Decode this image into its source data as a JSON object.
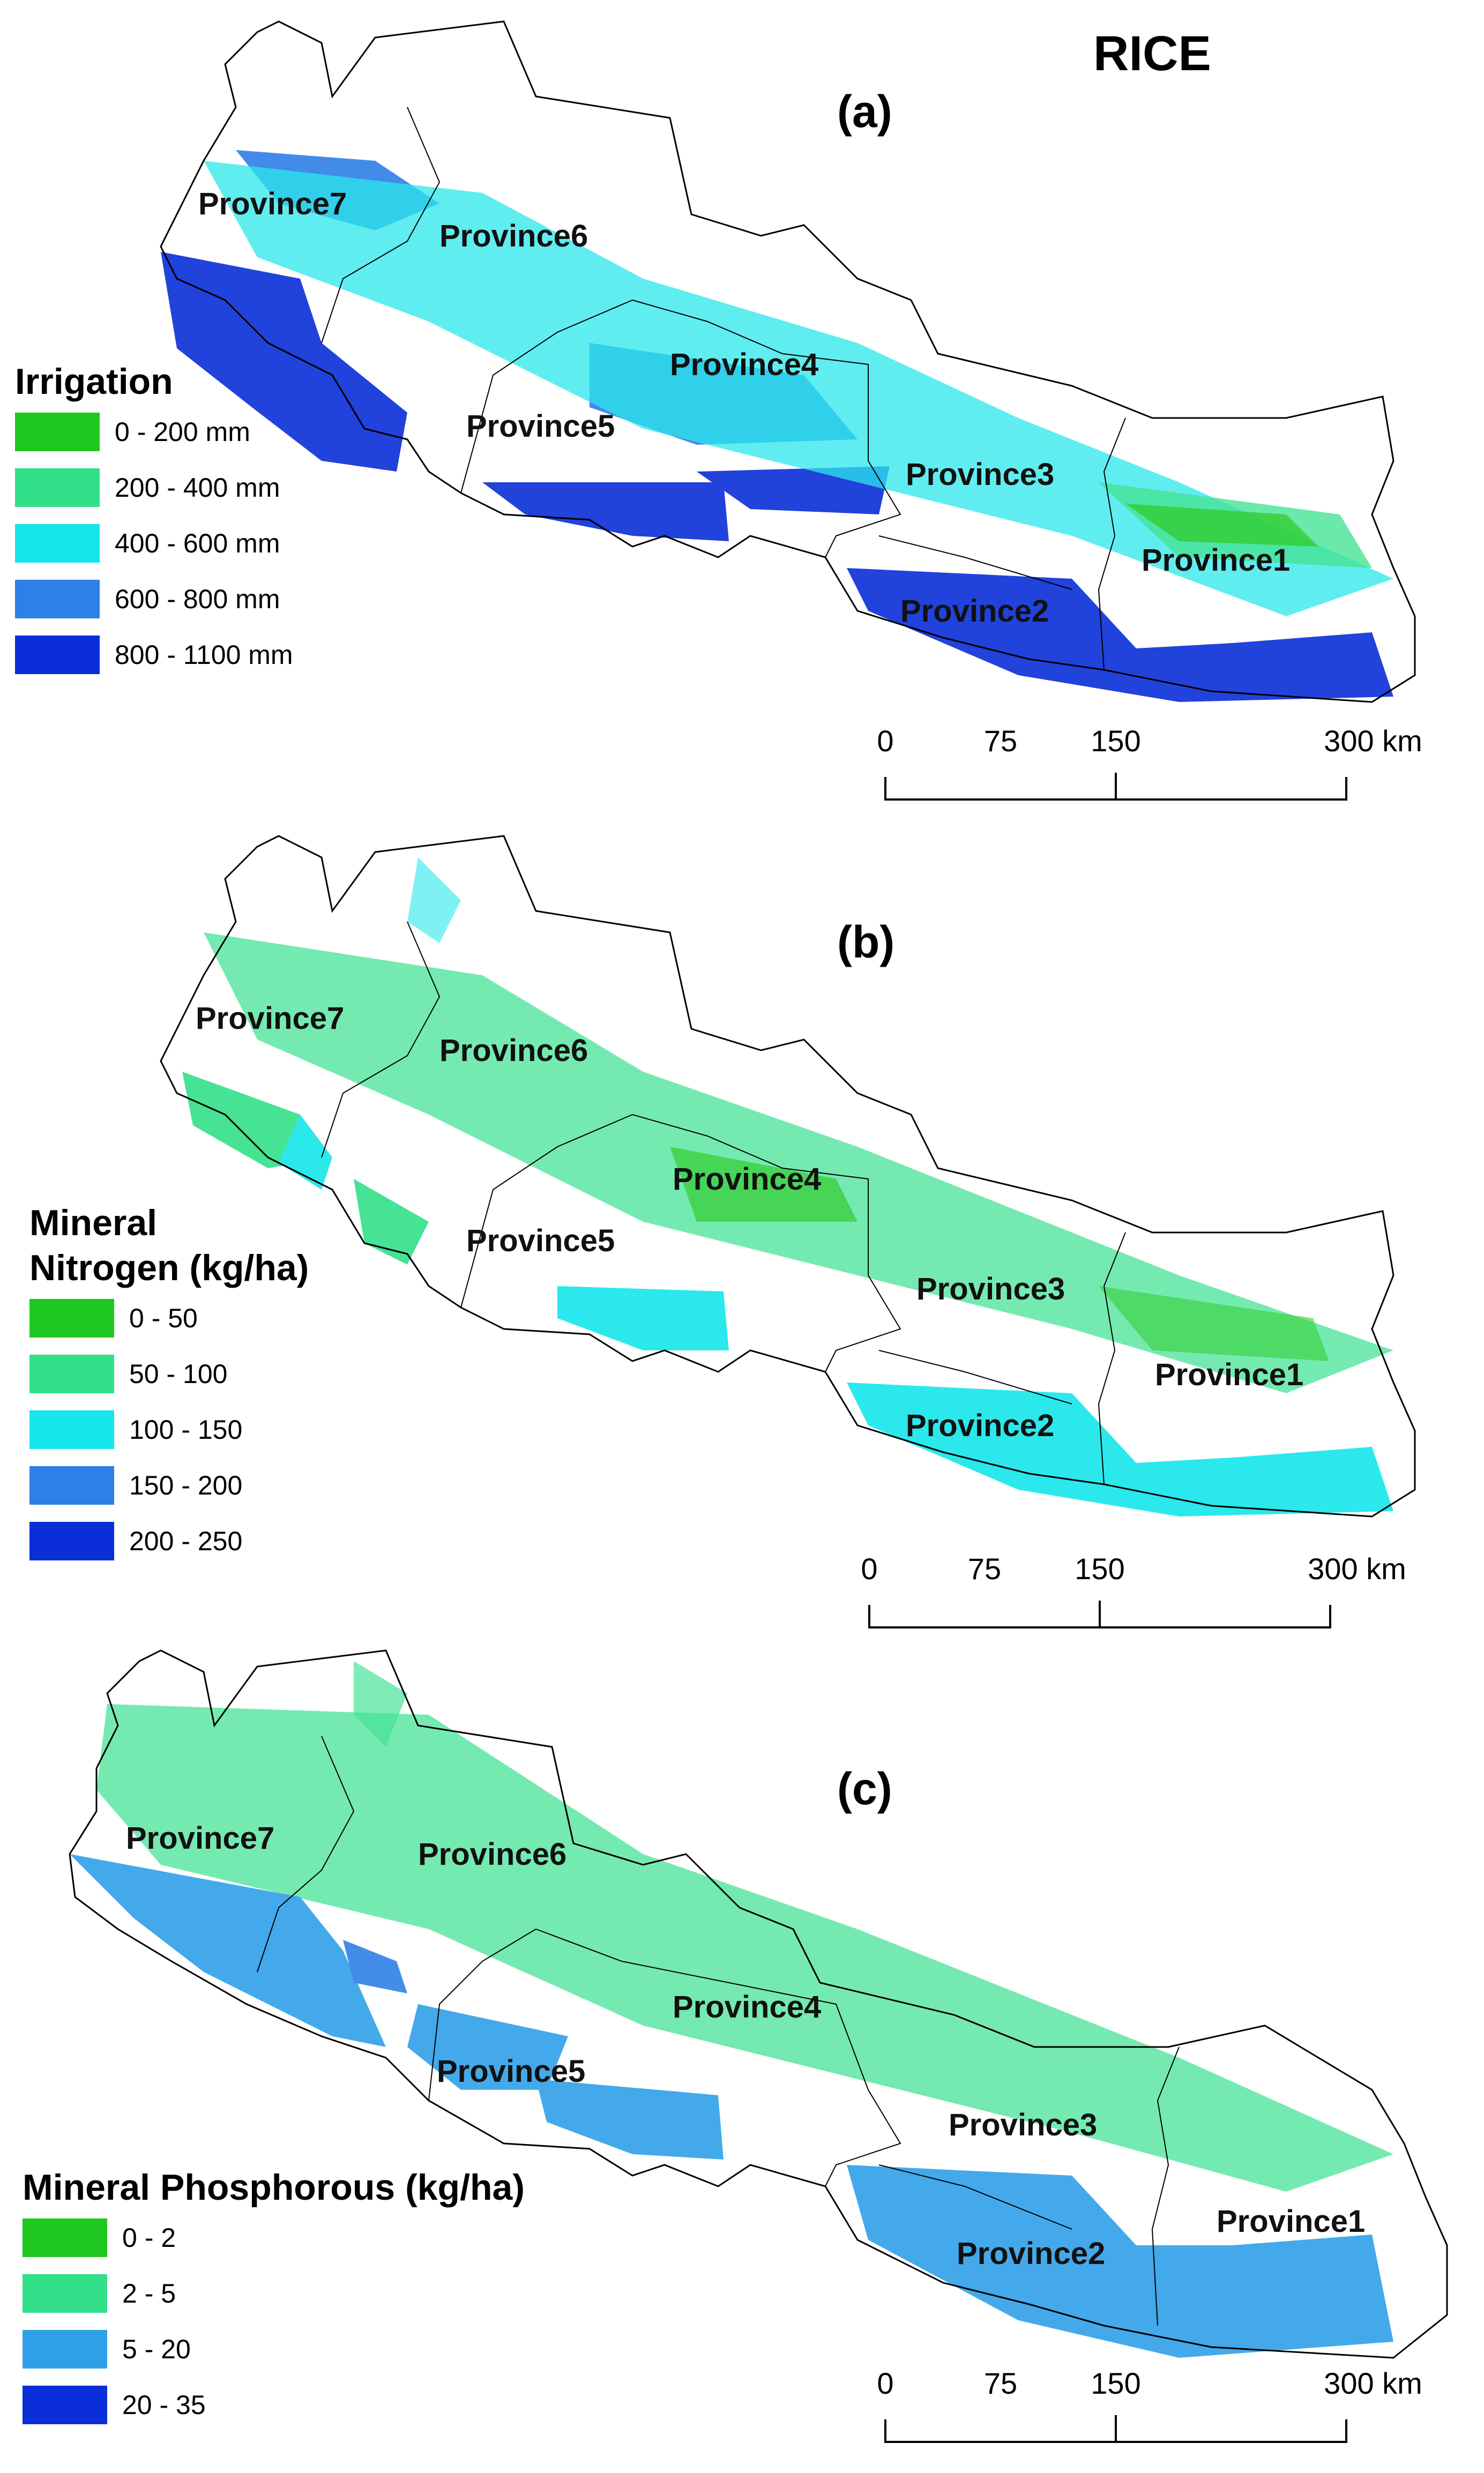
{
  "figure_title": "RICE",
  "colors": {
    "green": "#1ec81e",
    "light_green": "#32e08a",
    "cyan": "#14e6ea",
    "mid_blue": "#2e7fe6",
    "dark_blue": "#0a2ed8",
    "sky_blue": "#2fa0e8",
    "boundary": "#000000"
  },
  "provinces": [
    "Province7",
    "Province6",
    "Province4",
    "Province5",
    "Province3",
    "Province1",
    "Province2"
  ],
  "scale_bar": {
    "ticks": [
      "0",
      "75",
      "150",
      "300 km"
    ]
  },
  "panels": [
    {
      "label": "(a)",
      "legend_title": "Irrigation",
      "legend": [
        {
          "label": "0 - 200 mm",
          "color": "#1ec81e"
        },
        {
          "label": "200 - 400 mm",
          "color": "#32e08a"
        },
        {
          "label": "400 - 600 mm",
          "color": "#14e6ea"
        },
        {
          "label": "600 - 800 mm",
          "color": "#2e7fe6"
        },
        {
          "label": "800 - 1100 mm",
          "color": "#0a2ed8"
        }
      ]
    },
    {
      "label": "(b)",
      "legend_title": "Mineral\nNitrogen (kg/ha)",
      "legend": [
        {
          "label": "0 - 50",
          "color": "#1ec81e"
        },
        {
          "label": "50 - 100",
          "color": "#32e08a"
        },
        {
          "label": "100 - 150",
          "color": "#14e6ea"
        },
        {
          "label": "150 - 200",
          "color": "#2e7fe6"
        },
        {
          "label": "200 - 250",
          "color": "#0a2ed8"
        }
      ]
    },
    {
      "label": "(c)",
      "legend_title": "Mineral Phosphorous (kg/ha)",
      "legend": [
        {
          "label": "0 - 2",
          "color": "#1ec81e"
        },
        {
          "label": "2 - 5",
          "color": "#32e08a"
        },
        {
          "label": "5 - 20",
          "color": "#2fa0e8"
        },
        {
          "label": "20 - 35",
          "color": "#0a2ed8"
        }
      ]
    }
  ]
}
